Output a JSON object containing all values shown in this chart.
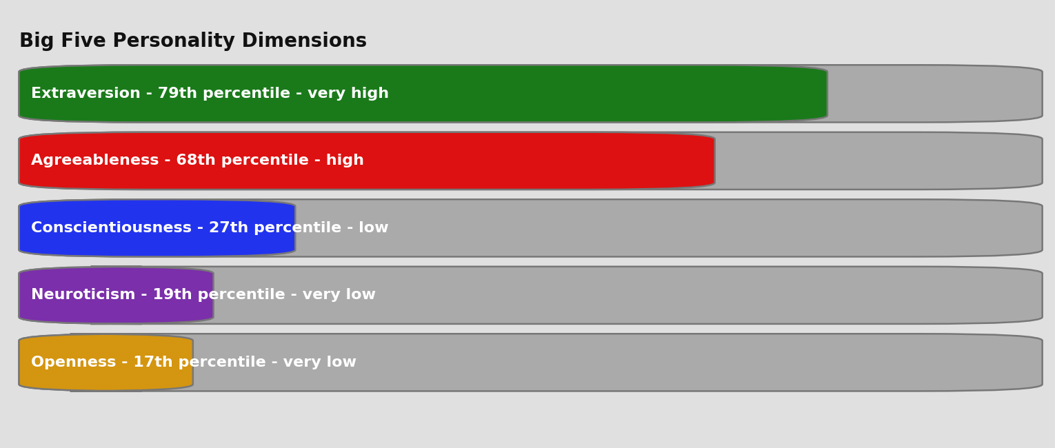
{
  "title": "Big Five Personality Dimensions",
  "title_fontsize": 20,
  "title_fontweight": "bold",
  "background_color": "#e0e0e0",
  "bars": [
    {
      "label": "Extraversion - 79th percentile - very high",
      "value": 79,
      "color": "#1a7a1a",
      "text_color": "#ffffff"
    },
    {
      "label": "Agreeableness - 68th percentile - high",
      "value": 68,
      "color": "#dd1111",
      "text_color": "#ffffff"
    },
    {
      "label": "Conscientiousness - 27th percentile - low",
      "value": 27,
      "color": "#2233ee",
      "text_color": "#ffffff"
    },
    {
      "label": "Neuroticism - 19th percentile - very low",
      "value": 19,
      "color": "#7b2faa",
      "text_color": "#ffffff"
    },
    {
      "label": "Openness - 17th percentile - very low",
      "value": 17,
      "color": "#d49510",
      "text_color": "#ffffff"
    }
  ],
  "bar_bg_color": "#aaaaaa",
  "label_fontsize": 16,
  "label_fontweight": "bold"
}
